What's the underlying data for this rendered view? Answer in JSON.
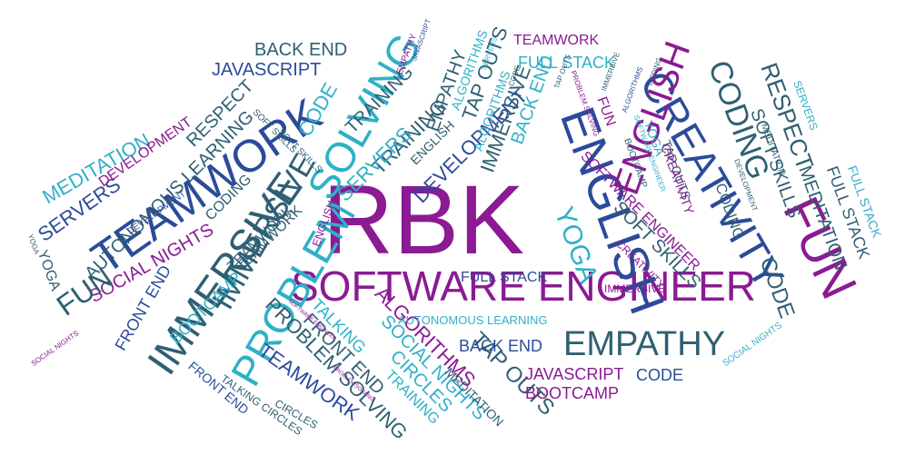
{
  "colors": {
    "purple": "#8b1a93",
    "slate_teal": "#2f5f73",
    "blue": "#2b4b9a",
    "cyan": "#2fb0c8",
    "magenta": "#b03a9e"
  },
  "words": [
    "RBK",
    "SOFTWARE ENGINEER",
    "EMPATHY",
    "CREATIVITY",
    "FUN",
    "ENGLISH",
    "ENGLISH",
    "TEAMWORK",
    "IMMERSIVE",
    "PROBLEM",
    "SOLVING",
    "IMMERSIVE",
    "CODING",
    "YOGA",
    "RESPECT",
    "SOFT SKILLS",
    "CODE",
    "MEDITATION",
    "FULL STACK",
    "BACK END",
    "JAVASCRIPT",
    "EMPATHY",
    "TRAINING",
    "TRAINING",
    "SERVERS",
    "DEVELOPMENT",
    "TAP OUTS",
    "ALGORITHMS",
    "TEAMWORK",
    "FULL STACK",
    "AUTONOMOUS LEARNING",
    "SOCIAL NIGHTS",
    "FRONT END",
    "BOOTCAMP",
    "FUN",
    "SERVERS",
    "MEDITATION",
    "YOGA",
    "TEAMWORK",
    "PROBLEM SOLVING",
    "FRONT END",
    "TALKING",
    "CIRCLES",
    "ALGORITHMS",
    "SOCIAL NIGHTS",
    "TAP OUTS",
    "BACK END",
    "JAVASCRIPT",
    "CODE",
    "BOOTCAMP",
    "MEDITATION",
    "TALKING CIRCLES",
    "FRONT END",
    "TRAINING",
    "CIRCLES",
    "SOFTWARE ENGINEER",
    "SOFT SKILLS",
    "IMMERSIVE",
    "CREATIVITY",
    "FULL STACK",
    "AUTONOMOUS LEARNING",
    "ENGLISH",
    "CODE",
    "DEVELOPMENT",
    "RESPECT",
    "SERVERS",
    "SOCIAL NIGHTS",
    "FULL STACK",
    "MEDITATION",
    "CODING",
    "SOFT SKILLS",
    "TAP OUTS",
    "YOGA",
    "BOOTCAMP",
    "SOFTWARE ENGINEER",
    "DEVELOPMENT",
    "TEAMWORK",
    "CODING",
    "SOFT SKILLS",
    "ENGLISH",
    "IMMERSIVE",
    "BACK END",
    "CREATIVITY",
    "FUN",
    "PROBLEM SOLVING",
    "ALGORITHMS",
    "JAVASCRIPT",
    "TEAMWORK",
    "ALGORITHMS",
    "SOFTWARE ENGINEER",
    "PROBLEM SOLVING",
    "DEVELOPMENT",
    "EMPATHY",
    "SOCIAL NIGHTS",
    "YOGA",
    "SERVERS",
    "CODE",
    "TAP OUTS",
    "IMMERSIVE",
    "CODING"
  ]
}
